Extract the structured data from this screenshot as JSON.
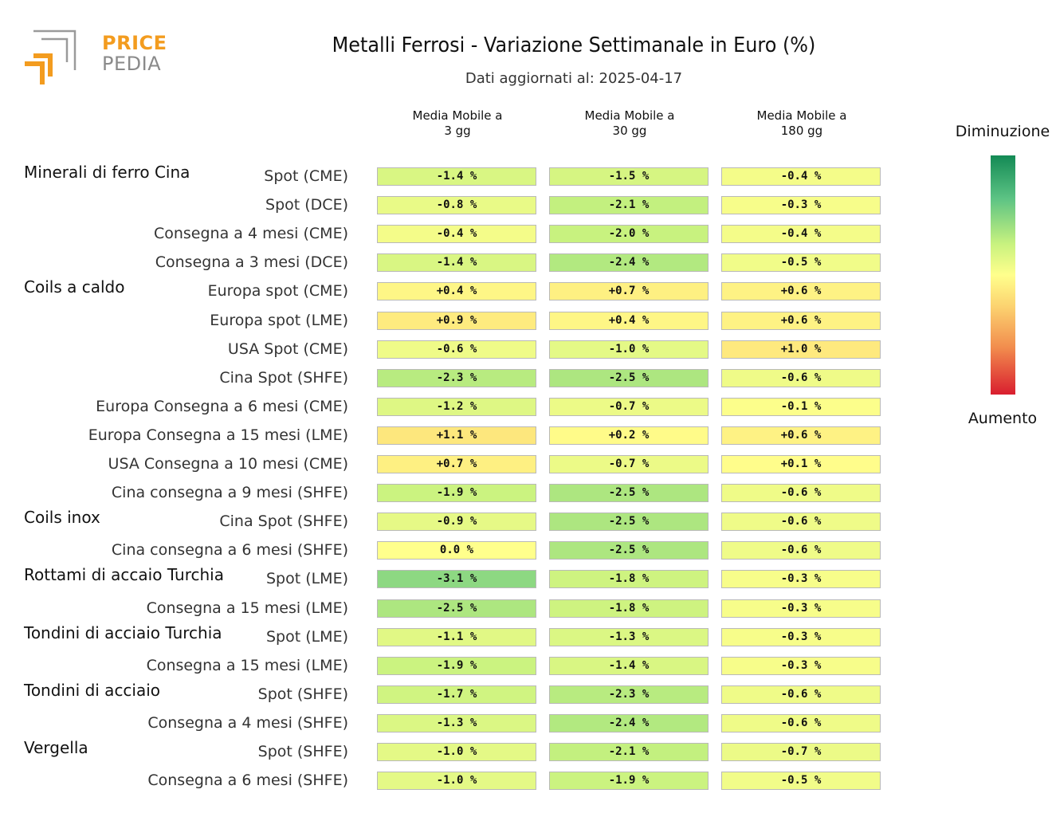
{
  "header": {
    "title": "Metalli Ferrosi - Variazione Settimanale in Euro (%)",
    "subtitle": "Dati aggiornati al: 2025-04-17"
  },
  "logo": {
    "line1": "PRICE",
    "line2": "PEDIA",
    "colors": {
      "orange": "#f39c1f",
      "gray": "#8a8a8a"
    }
  },
  "legend": {
    "top_label": "Diminuzione",
    "bottom_label": "Aumento",
    "colors": [
      "#138a55",
      "#5cc384",
      "#c8f27f",
      "#ffff8c",
      "#fcd370",
      "#f28e4e",
      "#d91e2f"
    ]
  },
  "chart_data": {
    "type": "heatmap",
    "title": "Metalli Ferrosi - Variazione Settimanale in Euro (%)",
    "subtitle": "Dati aggiornati al: 2025-04-17",
    "columns": [
      [
        "Media Mobile a",
        "3 gg"
      ],
      [
        "Media Mobile a",
        "30 gg"
      ],
      [
        "Media Mobile a",
        "180 gg"
      ]
    ],
    "unit": "%",
    "color_scale": {
      "negative": "Diminuzione",
      "positive": "Aumento"
    },
    "groups": [
      {
        "name": "Minerali di ferro Cina",
        "rows": [
          {
            "label": "Spot (CME)",
            "values": [
              -1.4,
              -1.5,
              -0.4
            ]
          },
          {
            "label": "Spot (DCE)",
            "values": [
              -0.8,
              -2.1,
              -0.3
            ]
          },
          {
            "label": "Consegna a 4 mesi (CME)",
            "values": [
              -0.4,
              -2.0,
              -0.4
            ]
          },
          {
            "label": "Consegna a 3 mesi (DCE)",
            "values": [
              -1.4,
              -2.4,
              -0.5
            ]
          }
        ]
      },
      {
        "name": "Coils a caldo",
        "rows": [
          {
            "label": "Europa spot (CME)",
            "values": [
              0.4,
              0.7,
              0.6
            ]
          },
          {
            "label": "Europa spot (LME)",
            "values": [
              0.9,
              0.4,
              0.6
            ]
          },
          {
            "label": "USA Spot (CME)",
            "values": [
              -0.6,
              -1.0,
              1.0
            ]
          },
          {
            "label": "Cina Spot (SHFE)",
            "values": [
              -2.3,
              -2.5,
              -0.6
            ]
          },
          {
            "label": "Europa Consegna a 6 mesi (CME)",
            "values": [
              -1.2,
              -0.7,
              -0.1
            ]
          },
          {
            "label": "Europa Consegna a 15 mesi (LME)",
            "values": [
              1.1,
              0.2,
              0.6
            ]
          },
          {
            "label": "USA Consegna a 10 mesi (CME)",
            "values": [
              0.7,
              -0.7,
              0.1
            ]
          },
          {
            "label": "Cina consegna a 9 mesi (SHFE)",
            "values": [
              -1.9,
              -2.5,
              -0.6
            ]
          }
        ]
      },
      {
        "name": "Coils inox",
        "rows": [
          {
            "label": "Cina Spot (SHFE)",
            "values": [
              -0.9,
              -2.5,
              -0.6
            ]
          },
          {
            "label": "Cina consegna a 6 mesi (SHFE)",
            "values": [
              0.0,
              -2.5,
              -0.6
            ]
          }
        ]
      },
      {
        "name": "Rottami di accaio Turchia",
        "rows": [
          {
            "label": "Spot (LME)",
            "values": [
              -3.1,
              -1.8,
              -0.3
            ]
          },
          {
            "label": "Consegna a 15 mesi (LME)",
            "values": [
              -2.5,
              -1.8,
              -0.3
            ]
          }
        ]
      },
      {
        "name": "Tondini di acciaio Turchia",
        "rows": [
          {
            "label": "Spot (LME)",
            "values": [
              -1.1,
              -1.3,
              -0.3
            ]
          },
          {
            "label": "Consegna a 15 mesi (LME)",
            "values": [
              -1.9,
              -1.4,
              -0.3
            ]
          }
        ]
      },
      {
        "name": "Tondini di acciaio",
        "rows": [
          {
            "label": "Spot (SHFE)",
            "values": [
              -1.7,
              -2.3,
              -0.6
            ]
          },
          {
            "label": "Consegna a 4 mesi (SHFE)",
            "values": [
              -1.3,
              -2.4,
              -0.6
            ]
          }
        ]
      },
      {
        "name": "Vergella",
        "rows": [
          {
            "label": "Spot (SHFE)",
            "values": [
              -1.0,
              -2.1,
              -0.7
            ]
          },
          {
            "label": "Consegna a 6 mesi (SHFE)",
            "values": [
              -1.0,
              -1.9,
              -0.5
            ]
          }
        ]
      }
    ]
  }
}
